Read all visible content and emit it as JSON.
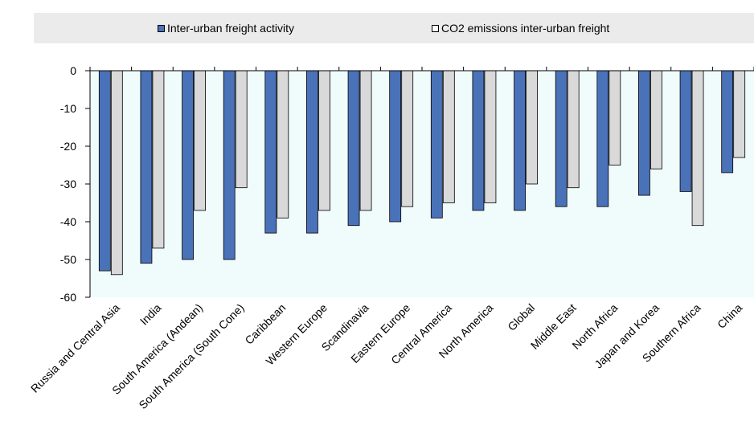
{
  "chart_data": {
    "type": "bar",
    "categories": [
      "Russia and Central Asia",
      "India",
      "South America (Andean)",
      "South America (South Cone)",
      "Caribbean",
      "Western Europe",
      "Scandinavia",
      "Eastern Europe",
      "Central America",
      "North America",
      "Global",
      "Middle East",
      "North Africa",
      "Japan and Korea",
      "Southern Africa",
      "China"
    ],
    "series": [
      {
        "name": "Inter-urban freight activity",
        "color": "#4a72b8",
        "values": [
          -53,
          -51,
          -50,
          -50,
          -43,
          -43,
          -41,
          -40,
          -39,
          -37,
          -37,
          -36,
          -36,
          -33,
          -32,
          -27
        ]
      },
      {
        "name": "CO2 emissions inter-urban freight",
        "color": "#d9d9d9",
        "values": [
          -54,
          -47,
          -37,
          -31,
          -39,
          -37,
          -37,
          -36,
          -35,
          -35,
          -30,
          -31,
          -25,
          -26,
          -41,
          -23
        ]
      }
    ],
    "ylim": [
      -60,
      0
    ],
    "yticks": [
      0,
      -10,
      -20,
      -30,
      -40,
      -50,
      -60
    ],
    "plot_background": "#f0fbfc",
    "legend_position": "top",
    "grid": false
  }
}
